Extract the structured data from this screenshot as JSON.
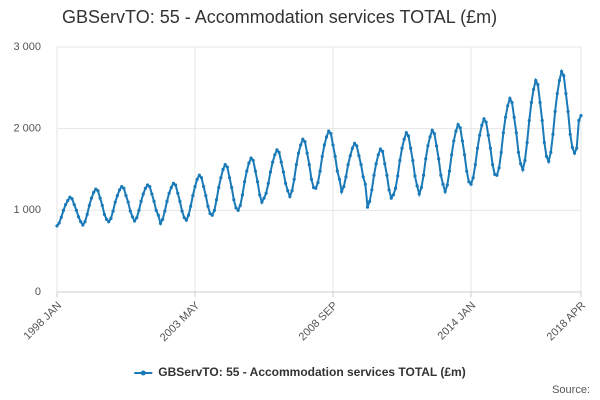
{
  "chart_data": {
    "type": "line",
    "title": "GBServTO: 55 - Accommodation services TOTAL (£m)",
    "source": "Source:",
    "categories": [
      "1998 JAN",
      null,
      null,
      null,
      null,
      null,
      null,
      null,
      null,
      null,
      null,
      null,
      null,
      null,
      null,
      null,
      null,
      null,
      null,
      null,
      null,
      null,
      null,
      null,
      null,
      null,
      null,
      null,
      null,
      null,
      null,
      null,
      null,
      null,
      null,
      null,
      null,
      null,
      null,
      null,
      null,
      null,
      null,
      null,
      null,
      null,
      null,
      null,
      null,
      null,
      null,
      null,
      null,
      null,
      null,
      null,
      null,
      null,
      null,
      null,
      null,
      null,
      null,
      null,
      "2003 MAY",
      null,
      null,
      null,
      null,
      null,
      null,
      null,
      null,
      null,
      null,
      null,
      null,
      null,
      null,
      null,
      null,
      null,
      null,
      null,
      null,
      null,
      null,
      null,
      null,
      null,
      null,
      null,
      null,
      null,
      null,
      null,
      null,
      null,
      null,
      null,
      null,
      null,
      null,
      null,
      null,
      null,
      null,
      null,
      null,
      null,
      null,
      null,
      null,
      null,
      null,
      null,
      null,
      null,
      null,
      null,
      null,
      null,
      null,
      null,
      null,
      null,
      null,
      null,
      "2008 SEP",
      null,
      null,
      null,
      null,
      null,
      null,
      null,
      null,
      null,
      null,
      null,
      null,
      null,
      null,
      null,
      null,
      null,
      null,
      null,
      null,
      null,
      null,
      null,
      null,
      null,
      null,
      null,
      null,
      null,
      null,
      null,
      null,
      null,
      null,
      null,
      null,
      null,
      null,
      null,
      null,
      null,
      null,
      null,
      null,
      null,
      null,
      null,
      null,
      null,
      null,
      null,
      null,
      null,
      null,
      null,
      null,
      null,
      null,
      null,
      null,
      null,
      null,
      null,
      "2014 JAN",
      null,
      null,
      null,
      null,
      null,
      null,
      null,
      null,
      null,
      null,
      null,
      null,
      null,
      null,
      null,
      null,
      null,
      null,
      null,
      null,
      null,
      null,
      null,
      null,
      null,
      null,
      null,
      null,
      null,
      null,
      null,
      null,
      null,
      null,
      null,
      null,
      null,
      null,
      null,
      null,
      null,
      null,
      null,
      null,
      null,
      null,
      null,
      null,
      null,
      null,
      "2018 APR"
    ],
    "series": [
      {
        "name": "GBServTO: 55 - Accommodation services TOTAL (£m)",
        "color": "#1a7ab8",
        "values": [
          810,
          845,
          915,
          1000,
          1070,
          1120,
          1160,
          1140,
          1070,
          1000,
          920,
          860,
          820,
          860,
          950,
          1060,
          1150,
          1220,
          1260,
          1240,
          1150,
          1060,
          950,
          890,
          860,
          900,
          990,
          1100,
          1180,
          1250,
          1290,
          1270,
          1180,
          1100,
          990,
          920,
          870,
          910,
          1000,
          1110,
          1200,
          1270,
          1310,
          1290,
          1200,
          1110,
          1000,
          940,
          840,
          890,
          990,
          1110,
          1210,
          1280,
          1330,
          1310,
          1210,
          1110,
          990,
          910,
          880,
          940,
          1050,
          1180,
          1290,
          1380,
          1430,
          1400,
          1290,
          1180,
          1050,
          960,
          940,
          1000,
          1130,
          1280,
          1400,
          1500,
          1560,
          1530,
          1400,
          1280,
          1130,
          1030,
          1000,
          1060,
          1190,
          1350,
          1480,
          1580,
          1640,
          1610,
          1480,
          1350,
          1190,
          1100,
          1150,
          1210,
          1330,
          1470,
          1590,
          1680,
          1740,
          1710,
          1590,
          1470,
          1330,
          1240,
          1170,
          1240,
          1380,
          1560,
          1700,
          1800,
          1870,
          1840,
          1700,
          1560,
          1380,
          1280,
          1270,
          1340,
          1480,
          1660,
          1800,
          1900,
          1970,
          1940,
          1800,
          1660,
          1480,
          1380,
          1230,
          1290,
          1410,
          1560,
          1670,
          1760,
          1820,
          1790,
          1670,
          1560,
          1410,
          1320,
          1040,
          1110,
          1250,
          1430,
          1570,
          1680,
          1750,
          1720,
          1570,
          1430,
          1250,
          1150,
          1190,
          1270,
          1420,
          1610,
          1760,
          1870,
          1950,
          1910,
          1760,
          1610,
          1420,
          1300,
          1200,
          1280,
          1430,
          1630,
          1790,
          1900,
          1980,
          1940,
          1790,
          1630,
          1430,
          1320,
          1230,
          1310,
          1480,
          1680,
          1850,
          1970,
          2050,
          2010,
          1850,
          1680,
          1480,
          1350,
          1320,
          1400,
          1560,
          1760,
          1920,
          2040,
          2120,
          2080,
          1920,
          1760,
          1560,
          1440,
          1430,
          1520,
          1710,
          1950,
          2140,
          2280,
          2370,
          2320,
          2140,
          1950,
          1710,
          1570,
          1500,
          1610,
          1830,
          2100,
          2320,
          2480,
          2590,
          2540,
          2320,
          2100,
          1830,
          1660,
          1600,
          1710,
          1930,
          2210,
          2430,
          2590,
          2700,
          2650,
          2430,
          2210,
          1930,
          1770,
          1700,
          1760,
          2100,
          2160
        ]
      }
    ],
    "ylim": [
      0,
      3000
    ],
    "yticks": [
      0,
      {
        "value": 1000,
        "label": "1 000"
      },
      {
        "value": 2000,
        "label": "2 000"
      },
      {
        "value": 3000,
        "label": "3 000"
      }
    ],
    "grid": true
  }
}
